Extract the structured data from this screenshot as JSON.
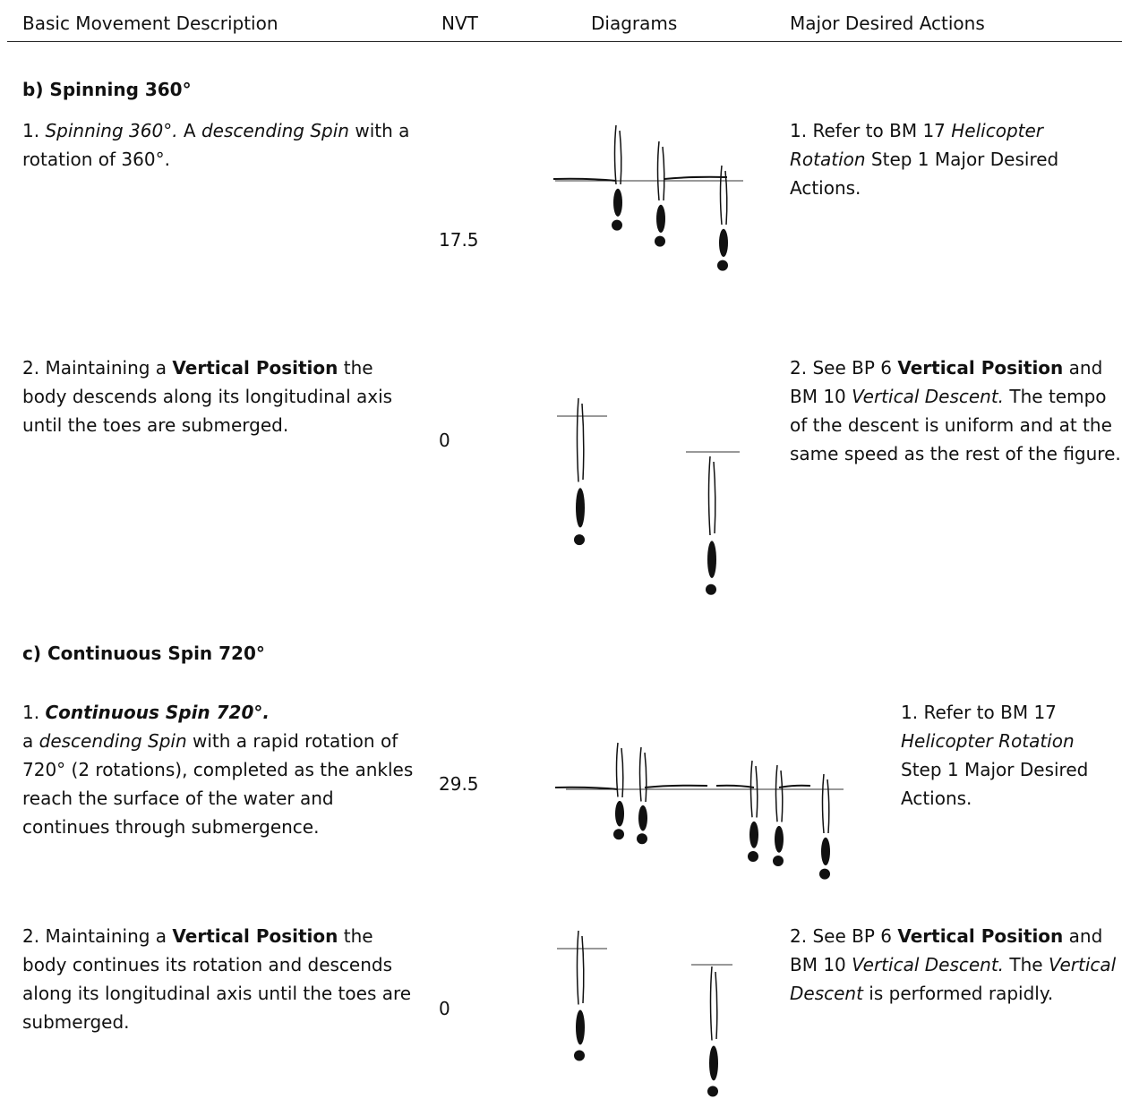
{
  "header": {
    "columns": [
      "Basic Movement Description",
      "NVT",
      "Diagrams",
      "Major Desired Actions"
    ]
  },
  "sections": [
    {
      "heading": "b) Spinning 360°",
      "rows": [
        {
          "description": [
            [
              {
                "text": "1. "
              },
              {
                "text": "Spinning 360°.",
                "italic": true
              },
              {
                "text": " A "
              },
              {
                "text": "descending Spin",
                "italic": true
              },
              {
                "text": " with a rotation of 360°."
              }
            ]
          ],
          "nvt": 17.5,
          "actions": [
            [
              {
                "text": "1. Refer to BM 17 "
              },
              {
                "text": "Helicopter Rotation",
                "italic": true
              },
              {
                "text": " Step 1 Major Desired Actions."
              }
            ]
          ]
        },
        {
          "description": [
            [
              {
                "text": "2. Maintaining a "
              },
              {
                "text": "Vertical Position",
                "bold": true
              },
              {
                "text": " the body descends along its longitudinal axis until the toes are submerged."
              }
            ]
          ],
          "nvt": 0,
          "actions": [
            [
              {
                "text": "2. See BP 6 "
              },
              {
                "text": "Vertical Position",
                "bold": true
              },
              {
                "text": " and BM 10 "
              },
              {
                "text": "Vertical Descent.",
                "italic": true
              },
              {
                "text": " The tempo of the descent is uniform and at the same speed as the rest of the figure."
              }
            ]
          ]
        }
      ]
    },
    {
      "heading": "c) Continuous Spin 720°",
      "rows": [
        {
          "description": [
            [
              {
                "text": "1. "
              },
              {
                "text": "Continuous Spin 720°.",
                "bold": true,
                "italic": true
              }
            ],
            [
              {
                "text": "a "
              },
              {
                "text": "descending Spin",
                "italic": true
              },
              {
                "text": " with a rapid rotation of 720° (2 rotations), completed as the ankles reach the surface of the water and continues through submergence."
              }
            ]
          ],
          "nvt": 29.5,
          "actions": [
            [
              {
                "text": "1. Refer to BM 17 "
              },
              {
                "text": "Helicopter Rotation",
                "italic": true
              },
              {
                "text": " Step 1 Major Desired Actions."
              }
            ]
          ]
        },
        {
          "description": [
            [
              {
                "text": "2. Maintaining a "
              },
              {
                "text": "Vertical Position",
                "bold": true
              },
              {
                "text": " the body continues its rotation and descends along its longitudinal axis until the toes are submerged."
              }
            ]
          ],
          "nvt": 0,
          "actions": [
            [
              {
                "text": "2. See BP 6 "
              },
              {
                "text": "Vertical Position",
                "bold": true
              },
              {
                "text": " and BM 10 "
              },
              {
                "text": "Vertical Descent.",
                "italic": true
              },
              {
                "text": " The "
              },
              {
                "text": "Vertical Descent",
                "italic": true
              },
              {
                "text": " is performed rapidly."
              }
            ]
          ]
        }
      ]
    }
  ]
}
